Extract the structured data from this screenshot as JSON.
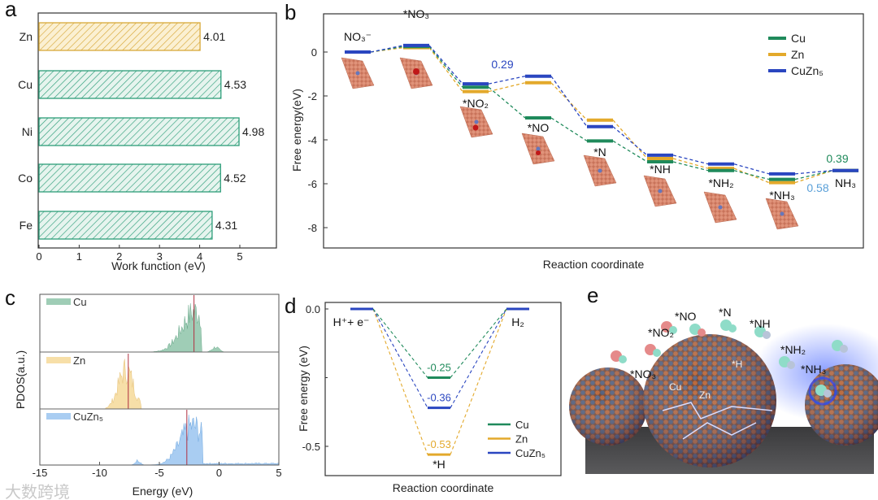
{
  "colors": {
    "Cu": "#1f8a5b",
    "Zn": "#e3a92b",
    "CuZn5": "#2a46c0",
    "bar_green": "#2e9e7a",
    "bar_yellow": "#d8a93a"
  },
  "watermark": "大数跨境",
  "chart_data": [
    {
      "panel": "a",
      "type": "bar",
      "orientation": "horizontal",
      "categories": [
        "Zn",
        "Cu",
        "Ni",
        "Co",
        "Fe"
      ],
      "values": [
        4.01,
        4.53,
        4.98,
        4.52,
        4.31
      ],
      "value_labels": [
        "4.01",
        "4.53",
        "4.98",
        "4.52",
        "4.31"
      ],
      "xlabel": "Work function (eV)",
      "xlim": [
        0,
        6
      ],
      "xticks": [
        "0",
        "1",
        "2",
        "3",
        "4",
        "5"
      ]
    },
    {
      "panel": "b",
      "type": "line",
      "subtype": "free-energy-diagram",
      "steps": [
        "NO₃⁻",
        "*NO₃",
        "*NO₂",
        "*NO",
        "*N",
        "*NH",
        "*NH₂",
        "*NH₃",
        "NH₃"
      ],
      "series": [
        {
          "name": "Cu",
          "values": [
            0,
            0.25,
            -1.6,
            -3.0,
            -4.05,
            -5.0,
            -5.4,
            -5.8,
            -5.4
          ]
        },
        {
          "name": "Zn",
          "values": [
            0,
            0.2,
            -1.8,
            -1.4,
            -3.1,
            -4.85,
            -5.3,
            -5.95,
            -5.4
          ]
        },
        {
          "name": "CuZn₅",
          "values": [
            0,
            0.3,
            -1.45,
            -1.1,
            -3.4,
            -4.7,
            -5.1,
            -5.55,
            -5.4
          ]
        }
      ],
      "annotations": [
        {
          "text": "0.29",
          "series": "CuZn₅"
        },
        {
          "text": "0.39",
          "series": "Cu"
        },
        {
          "text": "0.58",
          "series": "Zn"
        }
      ],
      "xlabel": "Reaction coordinate",
      "ylabel": "Free energy(eV)",
      "ylim": [
        -9,
        1.2
      ],
      "yticks": [
        "0",
        "-2",
        "-4",
        "-6",
        "-8"
      ],
      "legend": "top-right"
    },
    {
      "panel": "c",
      "type": "area",
      "subtype": "PDOS",
      "series": [
        {
          "name": "Cu",
          "d_band_center": -2.1,
          "range": [
            -6,
            0.5
          ]
        },
        {
          "name": "Zn",
          "d_band_center": -7.6,
          "range": [
            -9.5,
            -6.5
          ]
        },
        {
          "name": "CuZn₅",
          "d_band_center": -2.7,
          "range": [
            -7.5,
            5
          ]
        }
      ],
      "xlabel": "Energy (eV)",
      "ylabel": "PDOS(a.u.)",
      "xlim": [
        -15,
        5
      ],
      "xticks": [
        "-15",
        "-10",
        "-5",
        "0",
        "5"
      ]
    },
    {
      "panel": "d",
      "type": "line",
      "subtype": "free-energy-diagram",
      "steps": [
        "H⁺+ e⁻",
        "*H",
        "H₂"
      ],
      "series": [
        {
          "name": "Cu",
          "values": [
            0,
            -0.25,
            0
          ],
          "label": "-0.25"
        },
        {
          "name": "Zn",
          "values": [
            0,
            -0.53,
            0
          ],
          "label": "-0.53"
        },
        {
          "name": "CuZn₅",
          "values": [
            0,
            -0.36,
            0
          ],
          "label": "-0.36"
        }
      ],
      "xlabel": "Reaction coordinate",
      "ylabel": "Free energy (eV)",
      "ylim": [
        -0.6,
        0.02
      ],
      "yticks": [
        "0.0",
        "-0.5"
      ],
      "legend": "bottom-right"
    }
  ],
  "panel_e": {
    "labels": [
      "*NO₃",
      "*NO₂",
      "*NO",
      "*N",
      "*NH",
      "*NH₂",
      "*NH₃",
      "*H",
      "Cu",
      "Zn"
    ]
  },
  "panel_letters": [
    "a",
    "b",
    "c",
    "d",
    "e"
  ]
}
